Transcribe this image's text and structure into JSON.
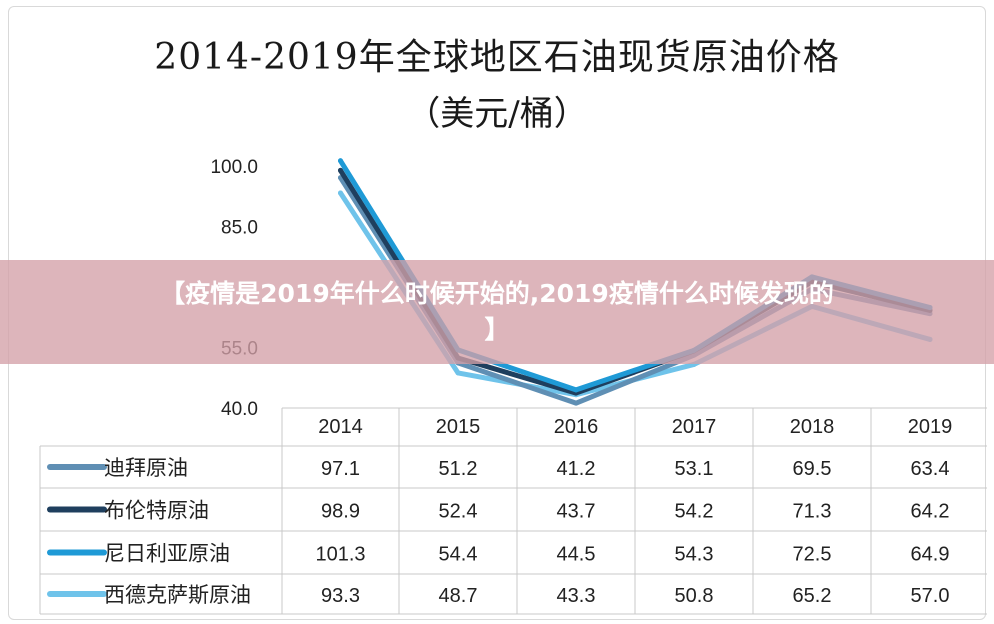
{
  "chart_data": {
    "type": "line",
    "title": "2014-2019年全球地区石油现货原油价格",
    "subtitle": "（美元/桶）",
    "categories": [
      "2014",
      "2015",
      "2016",
      "2017",
      "2018",
      "2019"
    ],
    "y_ticks": [
      "100.0",
      "85.0",
      "55.0",
      "40.0"
    ],
    "ylim": [
      40,
      100
    ],
    "series": [
      {
        "name": "迪拜原油",
        "color": "#5f8fb4",
        "values": [
          97.1,
          51.2,
          41.2,
          53.1,
          69.5,
          63.4
        ],
        "cells": [
          "97.1",
          "51.2",
          "41.2",
          "53.1",
          "69.5",
          "63.4"
        ]
      },
      {
        "name": "布伦特原油",
        "color": "#1f3f5e",
        "values": [
          98.9,
          52.4,
          43.7,
          54.2,
          71.3,
          64.2
        ],
        "cells": [
          "98.9",
          "52.4",
          "43.7",
          "54.2",
          "71.3",
          "64.2"
        ]
      },
      {
        "name": "尼日利亚原油",
        "color": "#1f9ad6",
        "values": [
          101.3,
          54.4,
          44.5,
          54.3,
          72.5,
          64.9
        ],
        "cells": [
          "101.3",
          "54.4",
          "44.5",
          "54.3",
          "72.5",
          "64.9"
        ]
      },
      {
        "name": "西德克萨斯原油",
        "color": "#6fc3ea",
        "values": [
          93.3,
          48.7,
          43.3,
          50.8,
          65.2,
          57.0
        ],
        "cells": [
          "93.3",
          "48.7",
          "43.3",
          "50.8",
          "65.2",
          "57.0"
        ]
      }
    ],
    "grid": false,
    "legend": "data table"
  },
  "overlay": {
    "line1": "【疫情是2019年什么时候开始的,2019疫情什么时候发现的",
    "line2": "】"
  }
}
